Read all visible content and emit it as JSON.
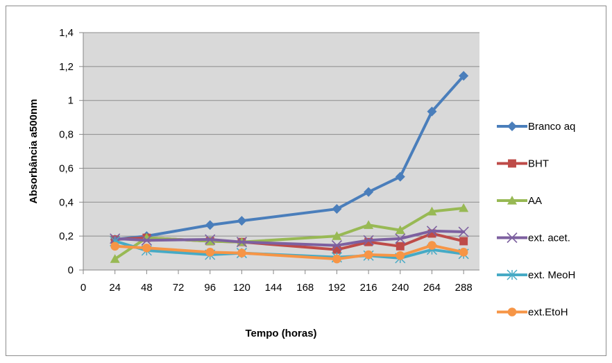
{
  "chart_data": {
    "type": "line",
    "title": "",
    "xlabel": "Tempo (horas)",
    "ylabel": "Absorbância a500nm",
    "xlim": [
      0,
      300
    ],
    "ylim": [
      0,
      1.4
    ],
    "x_ticks": [
      {
        "value": 0,
        "label": "0"
      },
      {
        "value": 24,
        "label": "24"
      },
      {
        "value": 48,
        "label": "48"
      },
      {
        "value": 72,
        "label": "72"
      },
      {
        "value": 96,
        "label": "96"
      },
      {
        "value": 120,
        "label": "120"
      },
      {
        "value": 144,
        "label": "144"
      },
      {
        "value": 168,
        "label": "168"
      },
      {
        "value": 192,
        "label": "192"
      },
      {
        "value": 216,
        "label": "216"
      },
      {
        "value": 240,
        "label": "240"
      },
      {
        "value": 264,
        "label": "264"
      },
      {
        "value": 288,
        "label": "288"
      }
    ],
    "y_ticks": [
      {
        "value": 0,
        "label": "0"
      },
      {
        "value": 0.2,
        "label": "0,2"
      },
      {
        "value": 0.4,
        "label": "0,4"
      },
      {
        "value": 0.6,
        "label": "0,6"
      },
      {
        "value": 0.8,
        "label": "0,8"
      },
      {
        "value": 1.0,
        "label": "1"
      },
      {
        "value": 1.2,
        "label": "1,2"
      },
      {
        "value": 1.4,
        "label": "1,4"
      }
    ],
    "grid": "horizontal",
    "plot_background": "#d9d9d9",
    "legend_position": "right",
    "x": [
      24,
      48,
      96,
      120,
      192,
      216,
      240,
      264,
      288
    ],
    "series": [
      {
        "name": "Branco aq",
        "color": "#4a7ebb",
        "marker": "diamond",
        "values": [
          0.18,
          0.2,
          0.265,
          0.29,
          0.36,
          0.46,
          0.55,
          0.935,
          1.145
        ]
      },
      {
        "name": "BHT",
        "color": "#be4b48",
        "marker": "square",
        "values": [
          0.18,
          0.19,
          0.17,
          0.165,
          0.12,
          0.165,
          0.14,
          0.215,
          0.17
        ]
      },
      {
        "name": "AA",
        "color": "#98b954",
        "marker": "triangle",
        "values": [
          0.065,
          0.19,
          0.17,
          0.165,
          0.2,
          0.265,
          0.235,
          0.345,
          0.365
        ]
      },
      {
        "name": "ext. acet.",
        "color": "#7d60a0",
        "marker": "x",
        "values": [
          0.185,
          0.175,
          0.18,
          0.165,
          0.145,
          0.175,
          0.185,
          0.23,
          0.225
        ]
      },
      {
        "name": "ext. MeoH",
        "color": "#46aac5",
        "marker": "star",
        "values": [
          0.17,
          0.115,
          0.09,
          0.1,
          0.075,
          0.085,
          0.07,
          0.12,
          0.095
        ]
      },
      {
        "name": "ext.EtoH",
        "color": "#f69546",
        "marker": "circle",
        "values": [
          0.14,
          0.13,
          0.105,
          0.1,
          0.065,
          0.09,
          0.085,
          0.145,
          0.105
        ]
      }
    ]
  }
}
